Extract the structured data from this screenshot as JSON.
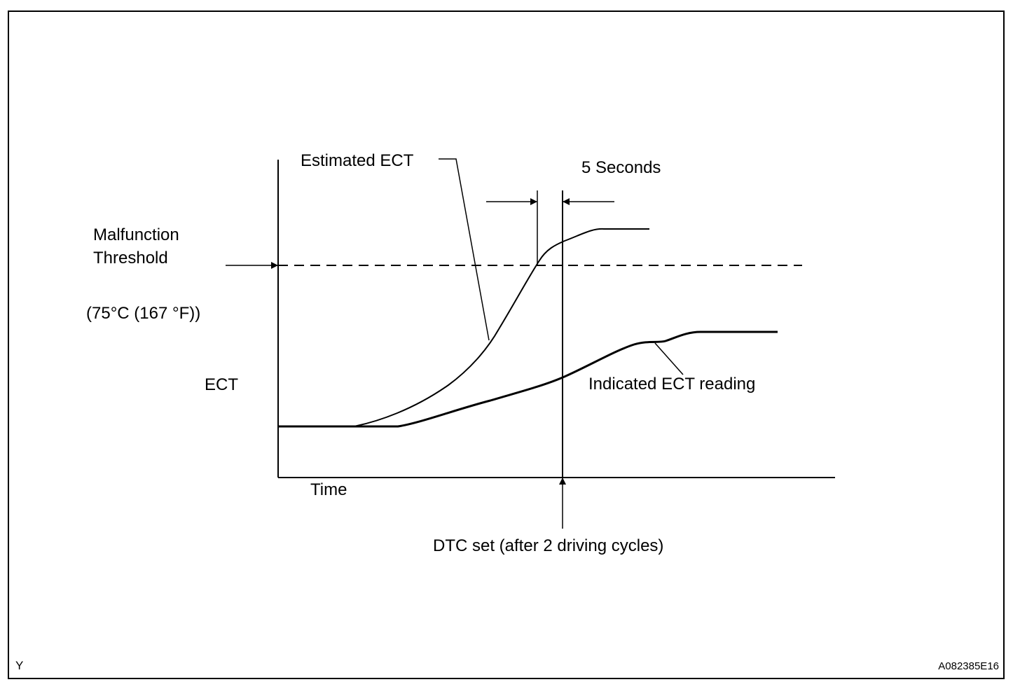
{
  "labels": {
    "estimated_ect": "Estimated ECT",
    "five_seconds": "5 Seconds",
    "malfunction_line1": "Malfunction",
    "malfunction_line2": "Threshold",
    "threshold_value": "(75°C (167 °F))",
    "y_axis": "ECT",
    "indicated_ect": "Indicated ECT reading",
    "x_axis": "Time",
    "dtc_set": "DTC set (after 2 driving cycles)"
  },
  "footer": {
    "left_code": "Y",
    "right_code": "A082385E16"
  },
  "colors": {
    "ink": "#000000",
    "background": "#ffffff"
  }
}
